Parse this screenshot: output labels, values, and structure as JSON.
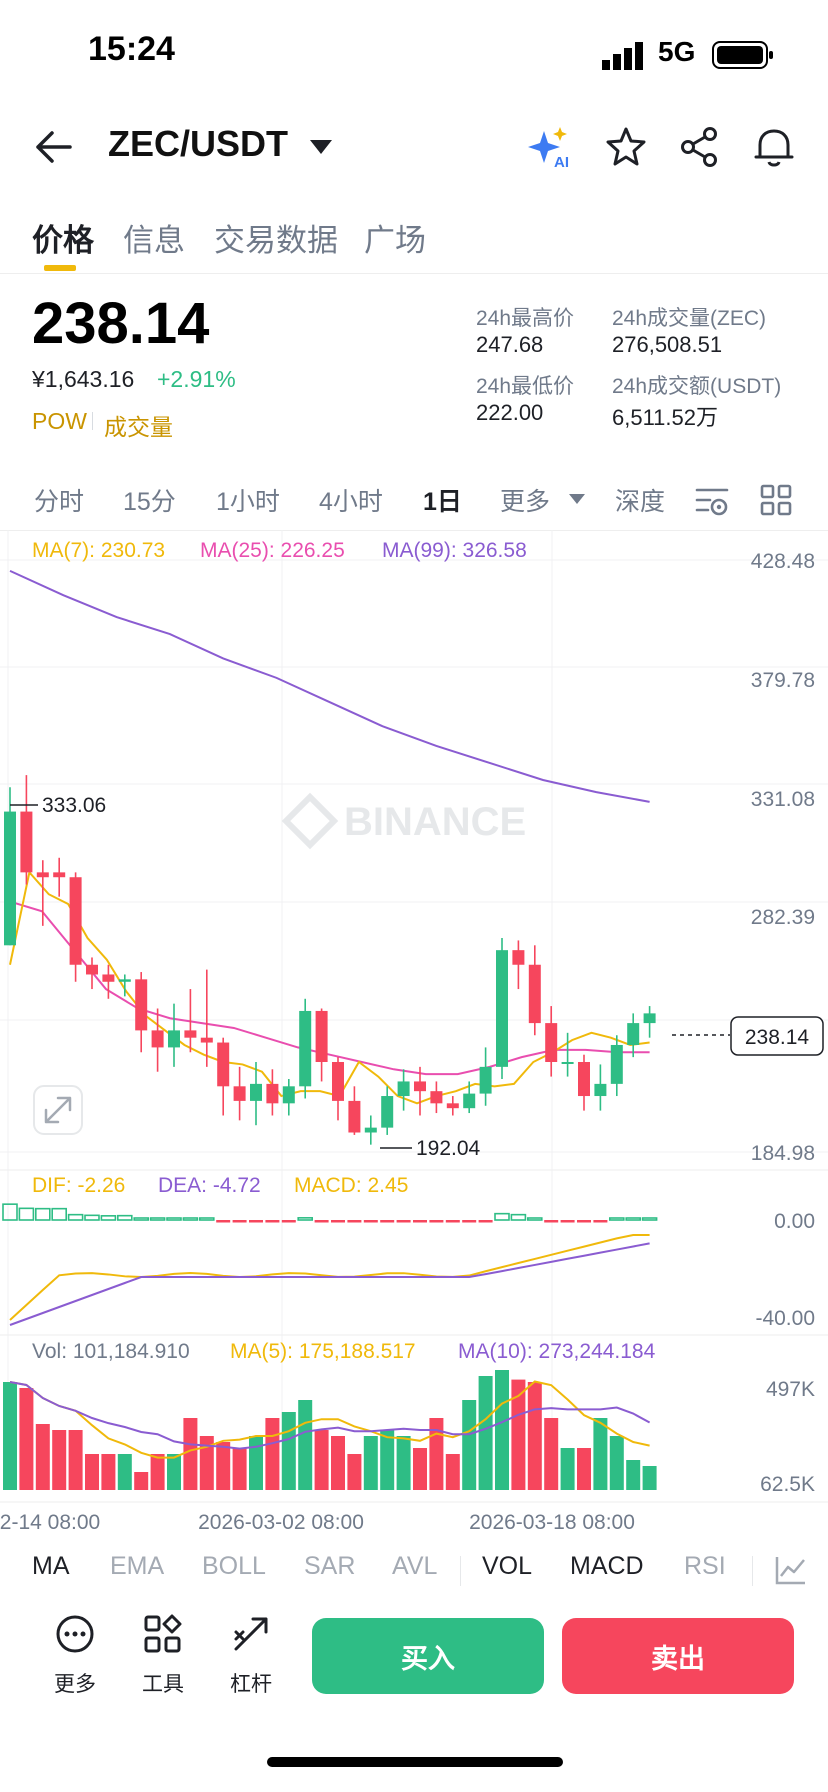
{
  "status_bar": {
    "time": "15:24",
    "network": "5G"
  },
  "header": {
    "pair": "ZEC/USDT"
  },
  "tabs": [
    "价格",
    "信息",
    "交易数据",
    "广场"
  ],
  "ticker": {
    "last_price": "238.14",
    "cny_price": "¥1,643.16",
    "change": "+2.91%",
    "tags": [
      "POW",
      "成交量"
    ],
    "high_label": "24h最高价",
    "high": "247.68",
    "low_label": "24h最低价",
    "low": "222.00",
    "vol_base_label": "24h成交量(ZEC)",
    "vol_base": "276,508.51",
    "vol_quote_label": "24h成交额(USDT)",
    "vol_quote": "6,511.52万"
  },
  "intervals": [
    "分时",
    "15分",
    "1小时",
    "4小时",
    "1日",
    "更多",
    "深度"
  ],
  "active_interval": "1日",
  "chart": {
    "ma_legend": {
      "ma7": "MA(7): 230.73",
      "ma25": "MA(25): 226.25",
      "ma99": "MA(99): 326.58"
    },
    "y_ticks": [
      "428.48",
      "379.78",
      "331.08",
      "282.39",
      "184.98"
    ],
    "last_price_label": "238.14",
    "high_marker": "333.06",
    "low_marker": "192.04",
    "watermark": "BINANCE",
    "macd_legend": {
      "dif": "DIF: -2.26",
      "dea": "DEA: -4.72",
      "macd": "MACD: 2.45"
    },
    "macd_ticks": [
      "0.00",
      "-40.00"
    ],
    "vol_legend": {
      "vol": "Vol: 101,184.910",
      "ma5": "MA(5): 175,188.517",
      "ma10": "MA(10): 273,244.184"
    },
    "vol_ticks": [
      "497K",
      "62.5K"
    ],
    "x_labels": [
      "2-14 08:00",
      "2026-03-02 08:00",
      "2026-03-18 08:00"
    ],
    "colors": {
      "up": "#2ebd85",
      "down": "#f6465d",
      "ma7": "#f0b90b",
      "ma25": "#e94eaf",
      "ma99": "#8a5cd1"
    }
  },
  "chart_data": {
    "type": "candlestick",
    "x": [
      "2-14 08:00",
      "2026-03-02 08:00",
      "2026-03-18 08:00"
    ],
    "candles_ohlc": [
      [
        270,
        325,
        270,
        335
      ],
      [
        325,
        300,
        295,
        340
      ],
      [
        300,
        298,
        278,
        305
      ],
      [
        300,
        298,
        290,
        306
      ],
      [
        298,
        262,
        255,
        300
      ],
      [
        262,
        258,
        252,
        265
      ],
      [
        258,
        255,
        248,
        262
      ],
      [
        255,
        256,
        249,
        258
      ],
      [
        256,
        235,
        226,
        259
      ],
      [
        235,
        228,
        218,
        244
      ],
      [
        228,
        235,
        220,
        246
      ],
      [
        235,
        232,
        226,
        252
      ],
      [
        232,
        230,
        220,
        260
      ],
      [
        230,
        212,
        200,
        232
      ],
      [
        212,
        206,
        198,
        220
      ],
      [
        206,
        213,
        196,
        222
      ],
      [
        213,
        205,
        200,
        219
      ],
      [
        205,
        212,
        200,
        215
      ],
      [
        212,
        243,
        207,
        248
      ],
      [
        243,
        222,
        214,
        244
      ],
      [
        222,
        206,
        198,
        224
      ],
      [
        206,
        193,
        192,
        212
      ],
      [
        193,
        195,
        188,
        200
      ],
      [
        195,
        208,
        192,
        212
      ],
      [
        208,
        214,
        202,
        219
      ],
      [
        214,
        210,
        200,
        220
      ],
      [
        210,
        205,
        201,
        214
      ],
      [
        205,
        203,
        200,
        208
      ],
      [
        203,
        209,
        201,
        214
      ],
      [
        209,
        220,
        204,
        228
      ],
      [
        220,
        268,
        215,
        273
      ],
      [
        268,
        262,
        252,
        272
      ],
      [
        262,
        238,
        233,
        270
      ],
      [
        238,
        222,
        216,
        245
      ],
      [
        222,
        222,
        216,
        234
      ],
      [
        222,
        208,
        202,
        225
      ],
      [
        208,
        213,
        202,
        221
      ],
      [
        213,
        229,
        208,
        233
      ],
      [
        229,
        238,
        224,
        242
      ],
      [
        238,
        242,
        232,
        245
      ]
    ],
    "ma7": [
      262,
      300,
      291,
      287,
      273,
      264,
      251,
      241,
      235,
      229,
      225,
      222,
      221,
      218,
      208,
      210,
      210,
      208,
      222,
      216,
      208,
      205,
      208,
      210,
      213,
      212,
      213,
      222,
      226,
      231,
      234,
      232,
      229,
      230
    ],
    "ma25": [
      288,
      284,
      268,
      252,
      244,
      240,
      238,
      236,
      232,
      228,
      225,
      222,
      219,
      217,
      217,
      220,
      224,
      227,
      227,
      226,
      226
    ],
    "ma99": [
      424,
      414,
      405,
      398,
      388,
      380,
      370,
      360,
      352,
      345,
      338,
      333,
      329
    ],
    "y_axis_ticks": [
      428.48,
      379.78,
      331.08,
      282.39,
      184.98
    ],
    "last_price": 238.14,
    "high": 333.06,
    "low": 192.04
  },
  "indicators": [
    "MA",
    "EMA",
    "BOLL",
    "SAR",
    "AVL",
    "VOL",
    "MACD",
    "RSI"
  ],
  "bottom": {
    "more": "更多",
    "tools": "工具",
    "leverage": "杠杆",
    "buy": "买入",
    "sell": "卖出"
  }
}
